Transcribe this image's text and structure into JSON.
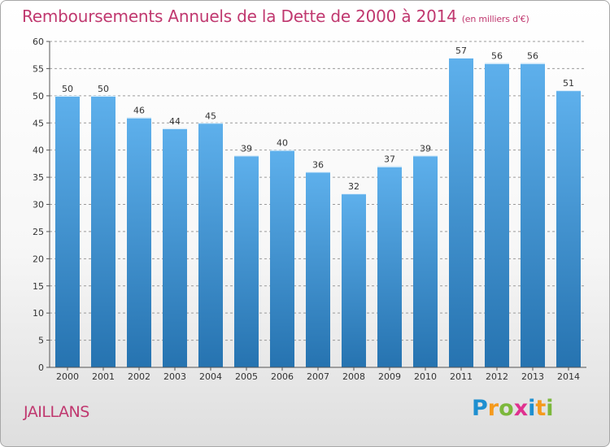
{
  "header": {
    "title": "Remboursements Annuels de la Dette de 2000 à 2014",
    "unit": "(en milliers d'€)"
  },
  "commune": "JAILLANS",
  "logo": {
    "letters": [
      "P",
      "r",
      "o",
      "x",
      "i",
      "t",
      "i"
    ],
    "colors": [
      "#1e8fd0",
      "#f59a1c",
      "#7cb83c",
      "#e0318f",
      "#1e8fd0",
      "#f59a1c",
      "#7cb83c"
    ]
  },
  "colors": {
    "bar_light": "#5eb0ec",
    "bar_dark": "#2673b0",
    "grid": "#9a9a9a",
    "text": "#333333"
  },
  "chart_data": {
    "type": "bar",
    "title": "Remboursements Annuels de la Dette de 2000 à 2014",
    "subtitle": "(en milliers d'€)",
    "xlabel": "",
    "ylabel": "",
    "categories": [
      "2000",
      "2001",
      "2002",
      "2003",
      "2004",
      "2005",
      "2006",
      "2007",
      "2008",
      "2009",
      "2010",
      "2011",
      "2012",
      "2013",
      "2014"
    ],
    "values": [
      50,
      50,
      46,
      44,
      45,
      39,
      40,
      36,
      32,
      37,
      39,
      57,
      56,
      56,
      51
    ],
    "ylim": [
      0,
      60
    ],
    "yticks": [
      0,
      5,
      10,
      15,
      20,
      25,
      30,
      35,
      40,
      45,
      50,
      55,
      60
    ],
    "grid": true,
    "data_labels": true
  }
}
